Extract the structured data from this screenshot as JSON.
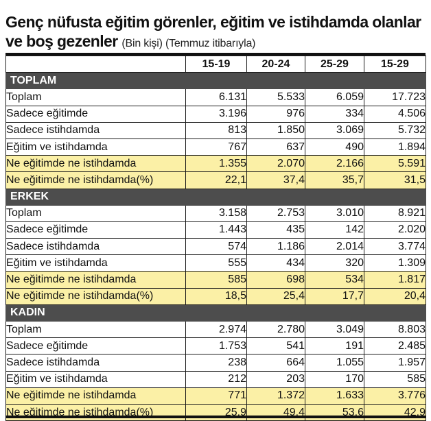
{
  "title": {
    "main": "Genç nüfusta eğitim görenler, eğitim ve istihdamda olanlar  ve boş gezenler",
    "subtitle": "(Bin kişi) (Temmuz itibarıyla)"
  },
  "colors": {
    "section_header": "#4d4d4d",
    "highlight_row": "#fbf0a6",
    "rule": "#111111"
  },
  "chart_data": {
    "type": "table",
    "columns": [
      "",
      "15-19",
      "20-24",
      "25-29",
      "15-29"
    ],
    "sections": [
      {
        "name": "TOPLAM",
        "rows": [
          {
            "label": "Toplam",
            "values": [
              "6.131",
              "5.533",
              "6.059",
              "17.723"
            ],
            "highlight": false
          },
          {
            "label": "Sadece eğitimde",
            "values": [
              "3.196",
              "976",
              "334",
              "4.506"
            ],
            "highlight": false
          },
          {
            "label": "Sadece istihdamda",
            "values": [
              "813",
              "1.850",
              "3.069",
              "5.732"
            ],
            "highlight": false
          },
          {
            "label": "Eğitim ve istihdamda",
            "values": [
              "767",
              "637",
              "490",
              "1.894"
            ],
            "highlight": false
          },
          {
            "label": "Ne eğitimde ne istihdamda",
            "values": [
              "1.355",
              "2.070",
              "2.166",
              "5.591"
            ],
            "highlight": true
          },
          {
            "label": "Ne eğitimde ne istihdamda(%)",
            "values": [
              "22,1",
              "37,4",
              "35,7",
              "31,5"
            ],
            "highlight": true
          }
        ]
      },
      {
        "name": "ERKEK",
        "rows": [
          {
            "label": "Toplam",
            "values": [
              "3.158",
              "2.753",
              "3.010",
              "8.921"
            ],
            "highlight": false
          },
          {
            "label": "Sadece eğitimde",
            "values": [
              "1.443",
              "435",
              "142",
              "2.020"
            ],
            "highlight": false
          },
          {
            "label": "Sadece istihdamda",
            "values": [
              "574",
              "1.186",
              "2.014",
              "3.774"
            ],
            "highlight": false
          },
          {
            "label": "Eğitim ve istihdamda",
            "values": [
              "555",
              "434",
              "320",
              "1.309"
            ],
            "highlight": false
          },
          {
            "label": "Ne eğitimde ne istihdamda",
            "values": [
              "585",
              "698",
              "534",
              "1.817"
            ],
            "highlight": true
          },
          {
            "label": "Ne eğitimde ne istihdamda(%)",
            "values": [
              "18,5",
              "25,4",
              "17,7",
              "20,4"
            ],
            "highlight": true
          }
        ]
      },
      {
        "name": "KADIN",
        "rows": [
          {
            "label": "Toplam",
            "values": [
              "2.974",
              "2.780",
              "3.049",
              "8.803"
            ],
            "highlight": false
          },
          {
            "label": "Sadece eğitimde",
            "values": [
              "1.753",
              "541",
              "191",
              "2.485"
            ],
            "highlight": false
          },
          {
            "label": "Sadece istihdamda",
            "values": [
              "238",
              "664",
              "1.055",
              "1.957"
            ],
            "highlight": false
          },
          {
            "label": "Eğitim ve istihdamda",
            "values": [
              "212",
              "203",
              "170",
              "585"
            ],
            "highlight": false
          },
          {
            "label": "Ne eğitimde ne istihdamda",
            "values": [
              "771",
              "1.372",
              "1.633",
              "3.776"
            ],
            "highlight": true
          },
          {
            "label": "Ne eğitimde ne istihdamda(%)",
            "values": [
              "25,9",
              "49,4",
              "53,6",
              "42,9"
            ],
            "highlight": true
          }
        ]
      }
    ]
  }
}
